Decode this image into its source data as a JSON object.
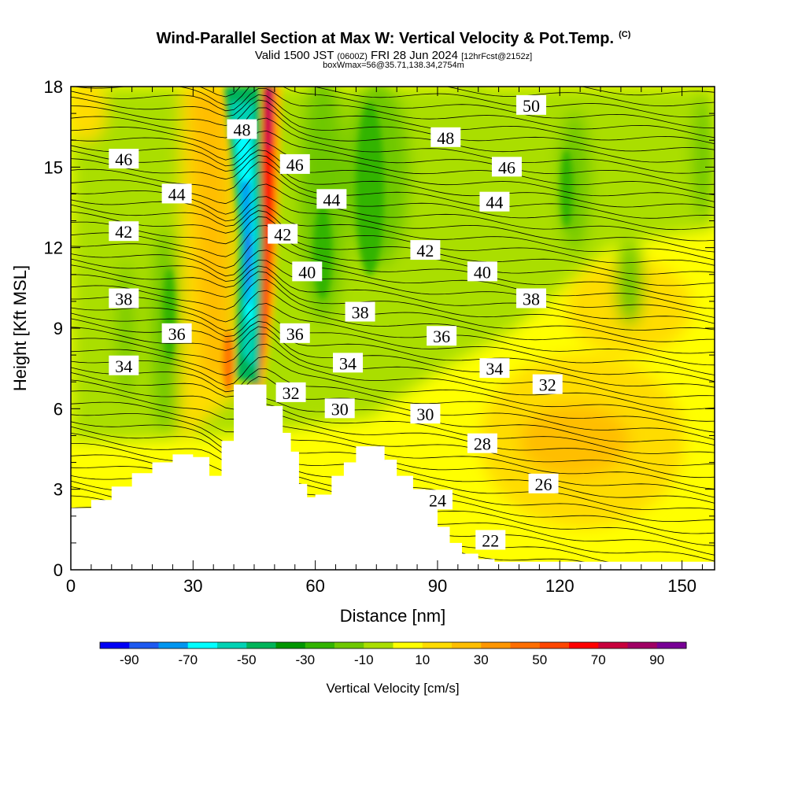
{
  "header": {
    "title": "Wind-Parallel Section at Max W: Vertical Velocity & Pot.Temp.",
    "copyright": "(C)",
    "valid_prefix": "Valid 1500 JST",
    "valid_utc": "(0600Z)",
    "valid_date": "FRI 28 Jun 2024",
    "forecast_note": "[12hrFcst@2152z]",
    "box_note": "boxWmax=56@35.71,138.34,2754m"
  },
  "chart_data": {
    "type": "heatmap",
    "xlabel": "Distance [nm]",
    "ylabel": "Height [Kft MSL]",
    "xlim": [
      0,
      158
    ],
    "ylim": [
      0,
      18
    ],
    "x_ticks": [
      0,
      30,
      60,
      90,
      120,
      150
    ],
    "y_ticks": [
      0,
      3,
      6,
      9,
      12,
      15,
      18
    ],
    "colorbar": {
      "label": "Vertical Velocity [cm/s]",
      "tick_labels": [
        -90,
        -70,
        -50,
        -30,
        -10,
        10,
        30,
        50,
        70,
        90
      ],
      "bounds": [
        -100,
        100
      ],
      "colors": [
        "#0000f5",
        "#1e5af0",
        "#0096f0",
        "#00ffff",
        "#00d2b4",
        "#00b45a",
        "#009600",
        "#32b400",
        "#6ec800",
        "#aade00",
        "#ffff00",
        "#ffdc00",
        "#ffbe00",
        "#ff9600",
        "#ff6e00",
        "#ff4600",
        "#ff0000",
        "#c8003c",
        "#a00064",
        "#780096"
      ]
    },
    "terrain_kft": [
      [
        0,
        2.3
      ],
      [
        5,
        2.6
      ],
      [
        10,
        3.1
      ],
      [
        15,
        3.6
      ],
      [
        20,
        4.0
      ],
      [
        25,
        4.3
      ],
      [
        30,
        4.2
      ],
      [
        34,
        3.5
      ],
      [
        37,
        4.8
      ],
      [
        40,
        6.9
      ],
      [
        45,
        6.9
      ],
      [
        48,
        6.1
      ],
      [
        52,
        5.1
      ],
      [
        54,
        4.4
      ],
      [
        56,
        3.2
      ],
      [
        58,
        2.7
      ],
      [
        60,
        2.8
      ],
      [
        64,
        3.5
      ],
      [
        67,
        4.0
      ],
      [
        70,
        4.6
      ],
      [
        74,
        4.6
      ],
      [
        77,
        4.1
      ],
      [
        80,
        3.5
      ],
      [
        84,
        3.0
      ],
      [
        87,
        2.3
      ],
      [
        90,
        1.6
      ],
      [
        93,
        1.0
      ],
      [
        96,
        0.6
      ],
      [
        100,
        0.4
      ],
      [
        104,
        0.3
      ],
      [
        110,
        0.3
      ],
      [
        158,
        0.3
      ]
    ],
    "theta_labels": [
      {
        "text": "22",
        "x": 103,
        "y": 1.1
      },
      {
        "text": "24",
        "x": 90,
        "y": 2.6
      },
      {
        "text": "26",
        "x": 116,
        "y": 3.2
      },
      {
        "text": "28",
        "x": 101,
        "y": 4.7
      },
      {
        "text": "30",
        "x": 66,
        "y": 6.0
      },
      {
        "text": "30",
        "x": 87,
        "y": 5.8
      },
      {
        "text": "32",
        "x": 54,
        "y": 6.6
      },
      {
        "text": "32",
        "x": 117,
        "y": 6.9
      },
      {
        "text": "34",
        "x": 13,
        "y": 7.6
      },
      {
        "text": "34",
        "x": 68,
        "y": 7.7
      },
      {
        "text": "34",
        "x": 104,
        "y": 7.5
      },
      {
        "text": "36",
        "x": 26,
        "y": 8.8
      },
      {
        "text": "36",
        "x": 55,
        "y": 8.8
      },
      {
        "text": "36",
        "x": 91,
        "y": 8.7
      },
      {
        "text": "38",
        "x": 13,
        "y": 10.1
      },
      {
        "text": "38",
        "x": 71,
        "y": 9.6
      },
      {
        "text": "38",
        "x": 113,
        "y": 10.1
      },
      {
        "text": "40",
        "x": 58,
        "y": 11.1
      },
      {
        "text": "40",
        "x": 101,
        "y": 11.1
      },
      {
        "text": "42",
        "x": 13,
        "y": 12.6
      },
      {
        "text": "42",
        "x": 52,
        "y": 12.5
      },
      {
        "text": "42",
        "x": 87,
        "y": 11.9
      },
      {
        "text": "44",
        "x": 26,
        "y": 14.0
      },
      {
        "text": "44",
        "x": 64,
        "y": 13.8
      },
      {
        "text": "44",
        "x": 104,
        "y": 13.7
      },
      {
        "text": "46",
        "x": 13,
        "y": 15.3
      },
      {
        "text": "46",
        "x": 55,
        "y": 15.1
      },
      {
        "text": "46",
        "x": 107,
        "y": 15.0
      },
      {
        "text": "48",
        "x": 42,
        "y": 16.4
      },
      {
        "text": "48",
        "x": 92,
        "y": 16.1
      },
      {
        "text": "50",
        "x": 113,
        "y": 17.3
      }
    ]
  }
}
